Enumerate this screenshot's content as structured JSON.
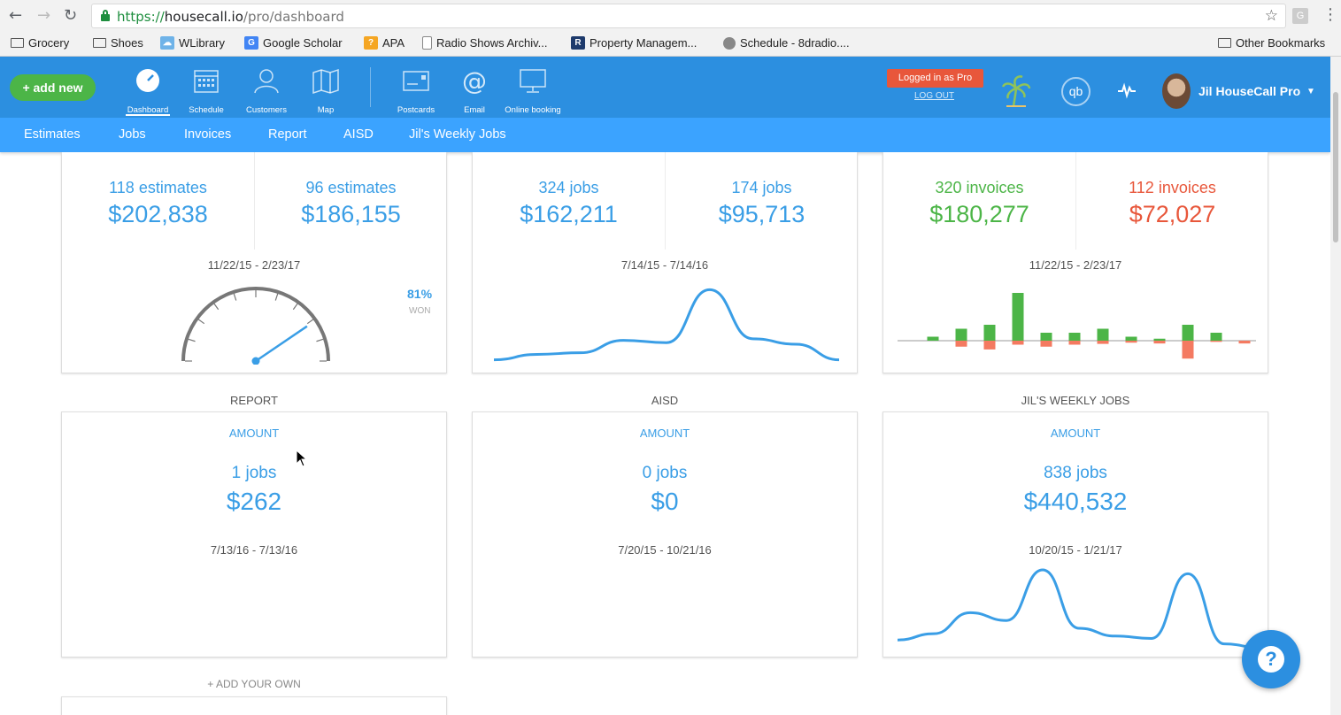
{
  "browser": {
    "url_scheme": "https://",
    "url_host": "housecall.io",
    "url_path": "/pro/dashboard",
    "ext_letter": "G",
    "bookmarks": {
      "grocery": "Grocery",
      "shoes": "Shoes",
      "wlibrary": "WLibrary",
      "scholar": "Google Scholar",
      "apa": "APA",
      "radio": "Radio Shows Archiv...",
      "property": "Property Managem...",
      "schedule": "Schedule - 8dradio....",
      "other": "Other Bookmarks"
    }
  },
  "header": {
    "add_new": "+ add new",
    "nav": {
      "dashboard": "Dashboard",
      "schedule": "Schedule",
      "customers": "Customers",
      "map": "Map",
      "postcards": "Postcards",
      "email": "Email",
      "online_booking": "Online booking"
    },
    "pro_badge": "Logged in as Pro",
    "logout": "LOG OUT",
    "qb": "qb",
    "user_name": "Jil HouseCall Pro"
  },
  "subnav": {
    "estimates": "Estimates",
    "jobs": "Jobs",
    "invoices": "Invoices",
    "report": "Report",
    "aisd": "AISD",
    "weekly": "Jil's Weekly Jobs"
  },
  "cards": {
    "estimates": {
      "left_count": "118 estimates",
      "left_amount": "$202,838",
      "right_count": "96 estimates",
      "right_amount": "$186,155",
      "date": "11/22/15 - 2/23/17",
      "won_pct": "81%",
      "won_label": "WON",
      "won_fraction": 0.81
    },
    "jobs": {
      "left_count": "324 jobs",
      "left_amount": "$162,211",
      "right_count": "174 jobs",
      "right_amount": "$95,713",
      "date": "7/14/15 - 7/14/16"
    },
    "invoices": {
      "left_count": "320 invoices",
      "left_amount": "$180,277",
      "right_count": "112 invoices",
      "right_amount": "$72,027",
      "date": "11/22/15 - 2/23/17"
    },
    "report": {
      "title": "REPORT",
      "amount_label": "AMOUNT",
      "count": "1 jobs",
      "amount": "$262",
      "date": "7/13/16 - 7/13/16"
    },
    "aisd": {
      "title": "AISD",
      "amount_label": "AMOUNT",
      "count": "0 jobs",
      "amount": "$0",
      "date": "7/20/15 - 10/21/16"
    },
    "weekly": {
      "title": "JIL'S WEEKLY JOBS",
      "amount_label": "AMOUNT",
      "count": "838 jobs",
      "amount": "$440,532",
      "date": "10/20/15 - 1/21/17"
    }
  },
  "add_your_own": "+ ADD YOUR OWN",
  "help": "?",
  "colors": {
    "brand_blue": "#2c8fe0",
    "subnav_blue": "#3ba3ff",
    "green": "#4cb547",
    "red": "#e8573b",
    "bar_red": "#f47a61"
  },
  "invoice_bars": {
    "paid": [
      1,
      3,
      4,
      12,
      2,
      2,
      3,
      1,
      0.5,
      4,
      2,
      0
    ],
    "unpaid": [
      0,
      1.5,
      2.2,
      1,
      1.5,
      1,
      0.8,
      0.5,
      0.7,
      4.5,
      0.3,
      0.7
    ]
  },
  "jobs_trend": [
    0.05,
    0.12,
    0.14,
    0.3,
    0.27,
    0.95,
    0.32,
    0.25,
    0.05
  ],
  "weekly_trend": [
    0.1,
    0.18,
    0.45,
    0.35,
    1.0,
    0.25,
    0.15,
    0.12,
    0.95,
    0.05,
    0.0
  ]
}
